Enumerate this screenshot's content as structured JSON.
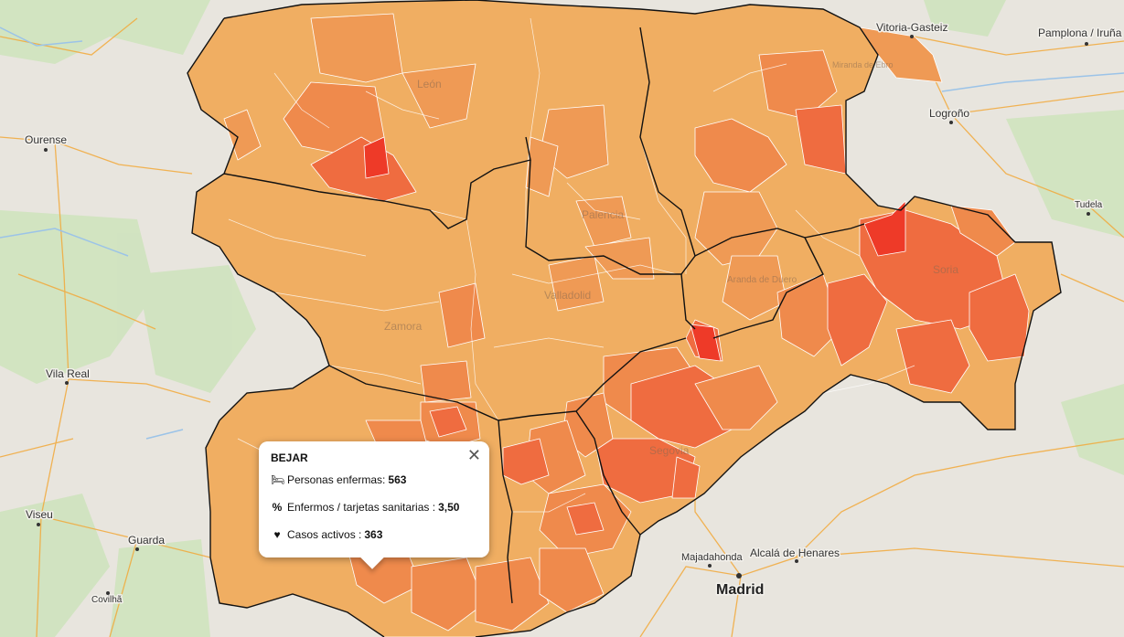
{
  "map": {
    "labels": {
      "vitoria": "Vitoria-Gasteiz",
      "pamplona": "Pamplona / Iruña",
      "logrono": "Logroño",
      "ourense": "Ourense",
      "tudela": "Tudela",
      "vila_real": "Vila Real",
      "viseu": "Viseu",
      "guarda": "Guarda",
      "covilha": "Covilhã",
      "majadahonda": "Majadahonda",
      "alcala": "Alcalá de Henares",
      "madrid": "Madrid",
      "soria": "Soria",
      "segovia": "Segovia",
      "aranda": "Aranda de Duero",
      "palencia": "Palencia",
      "valladolid": "Valladolid",
      "miranda": "Miranda de Ebro",
      "leon": "León",
      "zamora": "Zamora"
    },
    "choropleth_colors": {
      "low": "#f0ae62",
      "mid_low": "#ef9a55",
      "mid": "#ef8a4c",
      "high": "#ef6c40",
      "very_high": "#ee3a28"
    },
    "zoom_region": "Castilla y León"
  },
  "popup": {
    "title": "BEJAR",
    "close_icon": "close-icon",
    "rows": [
      {
        "icon": "bed-icon",
        "glyph": "🛏",
        "label": "Personas enfermas:",
        "value": "563"
      },
      {
        "icon": "percent-icon",
        "glyph": "%",
        "label": "Enfermos / tarjetas sanitarias :",
        "value": "3,50"
      },
      {
        "icon": "heartbeat-icon",
        "glyph": "♥",
        "label": "Casos activos :",
        "value": "363"
      }
    ],
    "close_glyph": "✕"
  }
}
